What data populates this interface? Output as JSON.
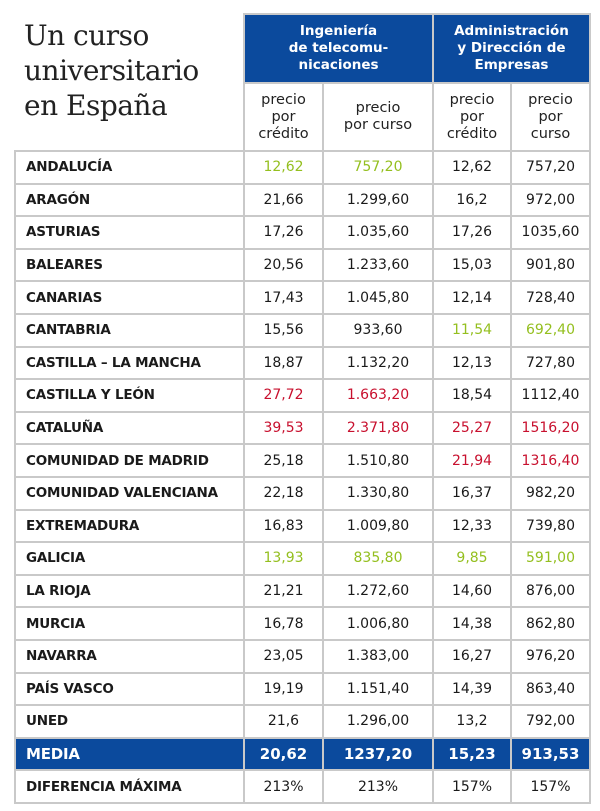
{
  "title": [
    "Un curso",
    "universitario",
    "en España"
  ],
  "groups": [
    "Ingeniería de telecomu- nicaciones",
    "Administración y Dirección de Empresas"
  ],
  "group_lines": [
    [
      "Ingeniería",
      "de telecomu-",
      "nicaciones"
    ],
    [
      "Administración",
      "y Dirección de",
      "Empresas"
    ]
  ],
  "subheaders": [
    [
      "precio",
      "por",
      "crédito"
    ],
    [
      "precio",
      "por curso"
    ],
    [
      "precio",
      "por",
      "crédito"
    ],
    [
      "precio",
      "por",
      "curso"
    ]
  ],
  "colors": {
    "g": "#94bf1f",
    "r": "#c8102e",
    "n": "#1a1a1a",
    "blue": "#0b4a9d"
  },
  "rows": [
    {
      "name": "ANDALUCÍA",
      "v": [
        "12,62",
        "757,20",
        "12,62",
        "757,20"
      ],
      "c": [
        "g",
        "g",
        "n",
        "n"
      ]
    },
    {
      "name": "ARAGÓN",
      "v": [
        "21,66",
        "1.299,60",
        "16,2",
        "972,00"
      ],
      "c": [
        "n",
        "n",
        "n",
        "n"
      ]
    },
    {
      "name": "ASTURIAS",
      "v": [
        "17,26",
        "1.035,60",
        "17,26",
        "1035,60"
      ],
      "c": [
        "n",
        "n",
        "n",
        "n"
      ]
    },
    {
      "name": "BALEARES",
      "v": [
        "20,56",
        "1.233,60",
        "15,03",
        "901,80"
      ],
      "c": [
        "n",
        "n",
        "n",
        "n"
      ]
    },
    {
      "name": "CANARIAS",
      "v": [
        "17,43",
        "1.045,80",
        "12,14",
        "728,40"
      ],
      "c": [
        "n",
        "n",
        "n",
        "n"
      ]
    },
    {
      "name": "CANTABRIA",
      "v": [
        "15,56",
        "933,60",
        "11,54",
        "692,40"
      ],
      "c": [
        "n",
        "n",
        "g",
        "g"
      ]
    },
    {
      "name": "CASTILLA – LA MANCHA",
      "v": [
        "18,87",
        "1.132,20",
        "12,13",
        "727,80"
      ],
      "c": [
        "n",
        "n",
        "n",
        "n"
      ]
    },
    {
      "name": "CASTILLA Y LEÓN",
      "v": [
        "27,72",
        "1.663,20",
        "18,54",
        "1112,40"
      ],
      "c": [
        "r",
        "r",
        "n",
        "n"
      ]
    },
    {
      "name": "CATALUÑA",
      "v": [
        "39,53",
        "2.371,80",
        "25,27",
        "1516,20"
      ],
      "c": [
        "r",
        "r",
        "r",
        "r"
      ]
    },
    {
      "name": "COMUNIDAD DE MADRID",
      "v": [
        "25,18",
        "1.510,80",
        "21,94",
        "1316,40"
      ],
      "c": [
        "n",
        "n",
        "r",
        "r"
      ]
    },
    {
      "name": "COMUNIDAD VALENCIANA",
      "v": [
        "22,18",
        "1.330,80",
        "16,37",
        "982,20"
      ],
      "c": [
        "n",
        "n",
        "n",
        "n"
      ]
    },
    {
      "name": "EXTREMADURA",
      "v": [
        "16,83",
        "1.009,80",
        "12,33",
        "739,80"
      ],
      "c": [
        "n",
        "n",
        "n",
        "n"
      ]
    },
    {
      "name": "GALICIA",
      "v": [
        "13,93",
        "835,80",
        "9,85",
        "591,00"
      ],
      "c": [
        "g",
        "g",
        "g",
        "g"
      ]
    },
    {
      "name": "LA RIOJA",
      "v": [
        "21,21",
        "1.272,60",
        "14,60",
        "876,00"
      ],
      "c": [
        "n",
        "n",
        "n",
        "n"
      ]
    },
    {
      "name": "MURCIA",
      "v": [
        "16,78",
        "1.006,80",
        "14,38",
        "862,80"
      ],
      "c": [
        "n",
        "n",
        "n",
        "n"
      ]
    },
    {
      "name": "NAVARRA",
      "v": [
        "23,05",
        "1.383,00",
        "16,27",
        "976,20"
      ],
      "c": [
        "n",
        "n",
        "n",
        "n"
      ]
    },
    {
      "name": "PAÍS VASCO",
      "v": [
        "19,19",
        "1.151,40",
        "14,39",
        "863,40"
      ],
      "c": [
        "n",
        "n",
        "n",
        "n"
      ]
    },
    {
      "name": "UNED",
      "v": [
        "21,6",
        "1.296,00",
        "13,2",
        "792,00"
      ],
      "c": [
        "n",
        "n",
        "n",
        "n"
      ]
    }
  ],
  "media": {
    "name": "MEDIA",
    "v": [
      "20,62",
      "1237,20",
      "15,23",
      "913,53"
    ]
  },
  "diferencia": {
    "name": "DIFERENCIA MÁXIMA",
    "v": [
      "213%",
      "213%",
      "157%",
      "157%"
    ]
  }
}
